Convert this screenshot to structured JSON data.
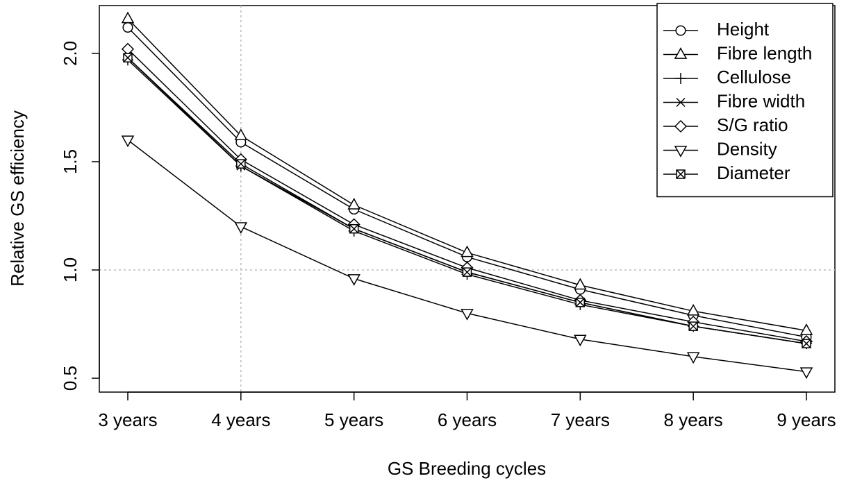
{
  "chart_data": {
    "type": "line",
    "x_label": "GS Breeding cycles",
    "y_label": "Relative GS efficiency",
    "categories": [
      "3 years",
      "4 years",
      "5 years",
      "6 years",
      "7 years",
      "8 years",
      "9 years"
    ],
    "series": [
      {
        "name": "Height",
        "color": "#000000",
        "marker": "circle",
        "values": [
          2.12,
          1.59,
          1.28,
          1.06,
          0.91,
          0.79,
          0.69
        ]
      },
      {
        "name": "Fibre length",
        "color": "#000000",
        "marker": "triangle-up",
        "values": [
          2.16,
          1.62,
          1.3,
          1.08,
          0.93,
          0.81,
          0.72
        ]
      },
      {
        "name": "Cellulose",
        "color": "#000000",
        "marker": "plus",
        "values": [
          1.97,
          1.48,
          1.18,
          0.98,
          0.84,
          0.74,
          0.66
        ]
      },
      {
        "name": "Fibre width",
        "color": "#000000",
        "marker": "cross",
        "values": [
          1.98,
          1.48,
          1.19,
          0.99,
          0.85,
          0.74,
          0.66
        ]
      },
      {
        "name": "S/G ratio",
        "color": "#000000",
        "marker": "diamond",
        "values": [
          2.02,
          1.51,
          1.21,
          1.01,
          0.86,
          0.76,
          0.67
        ]
      },
      {
        "name": "Density",
        "color": "#000000",
        "marker": "triangle-down",
        "values": [
          1.6,
          1.2,
          0.96,
          0.8,
          0.68,
          0.6,
          0.53
        ]
      },
      {
        "name": "Diameter",
        "color": "#000000",
        "marker": "square-cross",
        "values": [
          1.98,
          1.49,
          1.19,
          0.99,
          0.85,
          0.74,
          0.66
        ]
      }
    ],
    "ylim": [
      0.436,
      2.221
    ],
    "yticks": [
      0.5,
      {
        "value": 1,
        "label": "1.0"
      },
      1.5,
      {
        "value": 2,
        "label": "2.0"
      }
    ],
    "reference_lines": {
      "y": 1,
      "x": "4 years"
    },
    "legend": "top-right"
  }
}
